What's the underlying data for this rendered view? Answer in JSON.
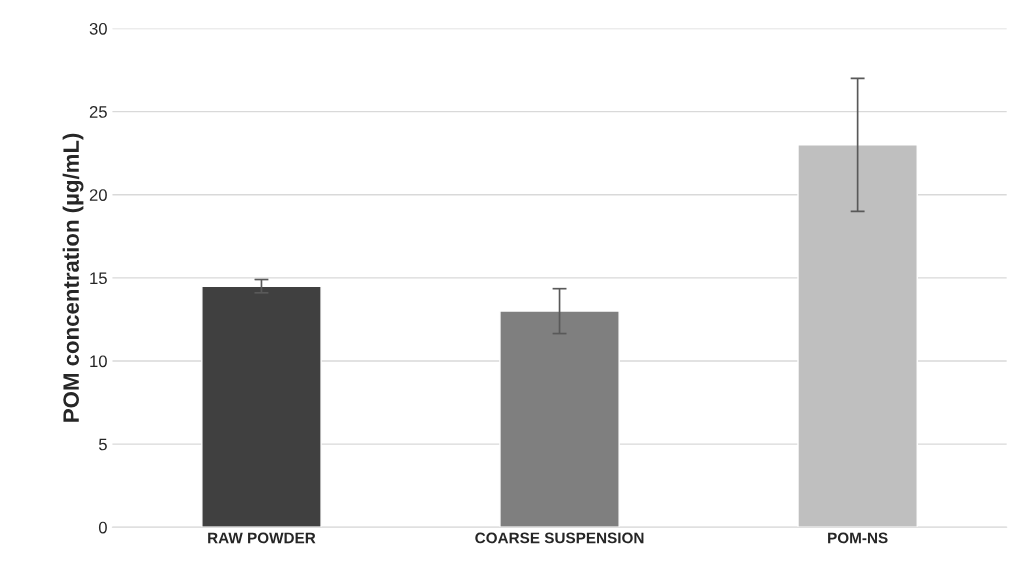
{
  "chart_data": {
    "type": "bar",
    "ylabel": "POM concentration (µg/mL)",
    "categories": [
      "RAW POWDER",
      "COARSE SUSPENSION",
      "POM-NS"
    ],
    "values": [
      14.5,
      13.0,
      23.0
    ],
    "errors": [
      0.4,
      1.35,
      4
    ],
    "colors": [
      "#404040",
      "#7f7f7f",
      "#bfbfbf"
    ],
    "ylim": [
      0,
      30
    ],
    "yticks": [
      0,
      5,
      10,
      15,
      20,
      25,
      30
    ],
    "grid": "y"
  }
}
